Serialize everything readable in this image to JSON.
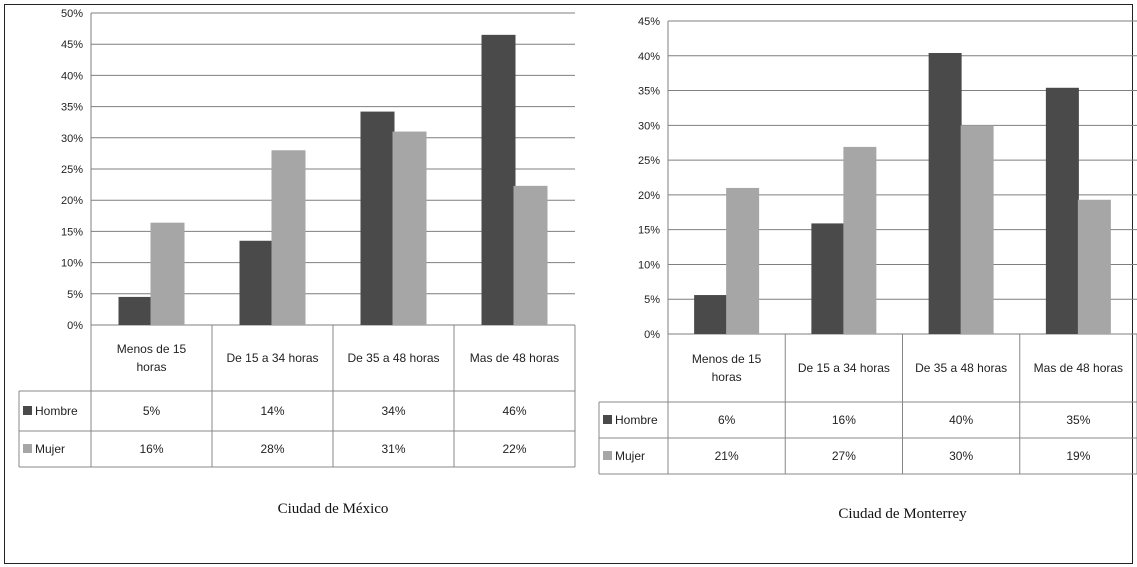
{
  "colors": {
    "hombre": "#4a4a4a",
    "mujer": "#a6a6a6",
    "grid": "#7f7f7f",
    "table_border": "#888888"
  },
  "chart_data": [
    {
      "type": "bar",
      "title": "Ciudad de México",
      "ylim": [
        0,
        50
      ],
      "yticks": [
        "0%",
        "5%",
        "10%",
        "15%",
        "20%",
        "25%",
        "30%",
        "35%",
        "40%",
        "45%",
        "50%"
      ],
      "categories": [
        [
          "Menos de 15",
          "horas"
        ],
        [
          "De 15 a 34 horas"
        ],
        [
          "De 35 a 48 horas"
        ],
        [
          "Mas de 48 horas"
        ]
      ],
      "series": [
        {
          "name": "Hombre",
          "values": [
            4.5,
            13.5,
            34.2,
            46.5
          ],
          "labels": [
            "5%",
            "14%",
            "34%",
            "46%"
          ]
        },
        {
          "name": "Mujer",
          "values": [
            16.4,
            28,
            31,
            22.3
          ],
          "labels": [
            "16%",
            "28%",
            "31%",
            "22%"
          ]
        }
      ],
      "grid": true,
      "legend": "data table"
    },
    {
      "type": "bar",
      "title": "Ciudad de Monterrey",
      "ylim": [
        0,
        45
      ],
      "yticks": [
        "0%",
        "5%",
        "10%",
        "15%",
        "20%",
        "25%",
        "30%",
        "35%",
        "40%",
        "45%"
      ],
      "categories": [
        [
          "Menos de 15",
          "horas"
        ],
        [
          "De 15 a 34 horas"
        ],
        [
          "De 35 a 48 horas"
        ],
        [
          "Mas de 48 horas"
        ]
      ],
      "series": [
        {
          "name": "Hombre",
          "values": [
            5.6,
            15.9,
            40.4,
            35.4
          ],
          "labels": [
            "6%",
            "16%",
            "40%",
            "35%"
          ]
        },
        {
          "name": "Mujer",
          "values": [
            21,
            26.9,
            30,
            19.3
          ],
          "labels": [
            "21%",
            "27%",
            "30%",
            "19%"
          ]
        }
      ],
      "grid": true,
      "legend": "data table"
    }
  ]
}
